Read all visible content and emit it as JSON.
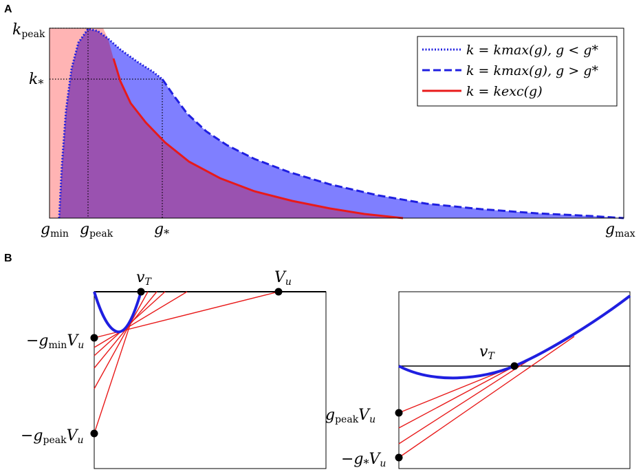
{
  "panels": {
    "a": "A",
    "b": "B"
  },
  "colors": {
    "blue": "#1f1fe0",
    "red": "#e81a1a",
    "blue_fill": "#7f7fff",
    "red_fill": "#ffb4b4",
    "overlap_fill": "#9a52b0"
  },
  "panel_a": {
    "y_labels": {
      "k_peak": "k",
      "k_peak_sub": "peak",
      "k_star": "k",
      "k_star_sub": "*"
    },
    "x_labels": {
      "g_min": "g",
      "g_min_sub": "min",
      "g_peak": "g",
      "g_peak_sub": "peak",
      "g_star": "g",
      "g_star_sub": "*",
      "g_max": "g",
      "g_max_sub": "max"
    },
    "legend": [
      {
        "style": "dotted",
        "color": "#1f1fe0",
        "label": "k = kmax(g),  g < g*"
      },
      {
        "style": "dashed",
        "color": "#1f1fe0",
        "label": "k = kmax(g),  g > g*"
      },
      {
        "style": "solid",
        "color": "#e81a1a",
        "label": "k = kexc(g)"
      }
    ]
  },
  "panel_b_left": {
    "v_t": "v",
    "v_t_sub": "T",
    "v_u": "V",
    "v_u_sub": "u",
    "label_gmin": "−g",
    "label_gmin_sub": "min",
    "label_gmin_tail": "V",
    "label_gmin_tail_sub": "u",
    "label_gpeak": "−g",
    "label_gpeak_sub": "peak",
    "label_gpeak_tail": "V",
    "label_gpeak_tail_sub": "u"
  },
  "panel_b_right": {
    "v_t": "v",
    "v_t_sub": "T",
    "label_gpeak": "g",
    "label_gpeak_sub": "peak",
    "label_gpeak_tail": "V",
    "label_gpeak_tail_sub": "u",
    "label_gstar": "−g",
    "label_gstar_sub": "*",
    "label_gstar_tail": "V",
    "label_gstar_tail_sub": "u"
  }
}
